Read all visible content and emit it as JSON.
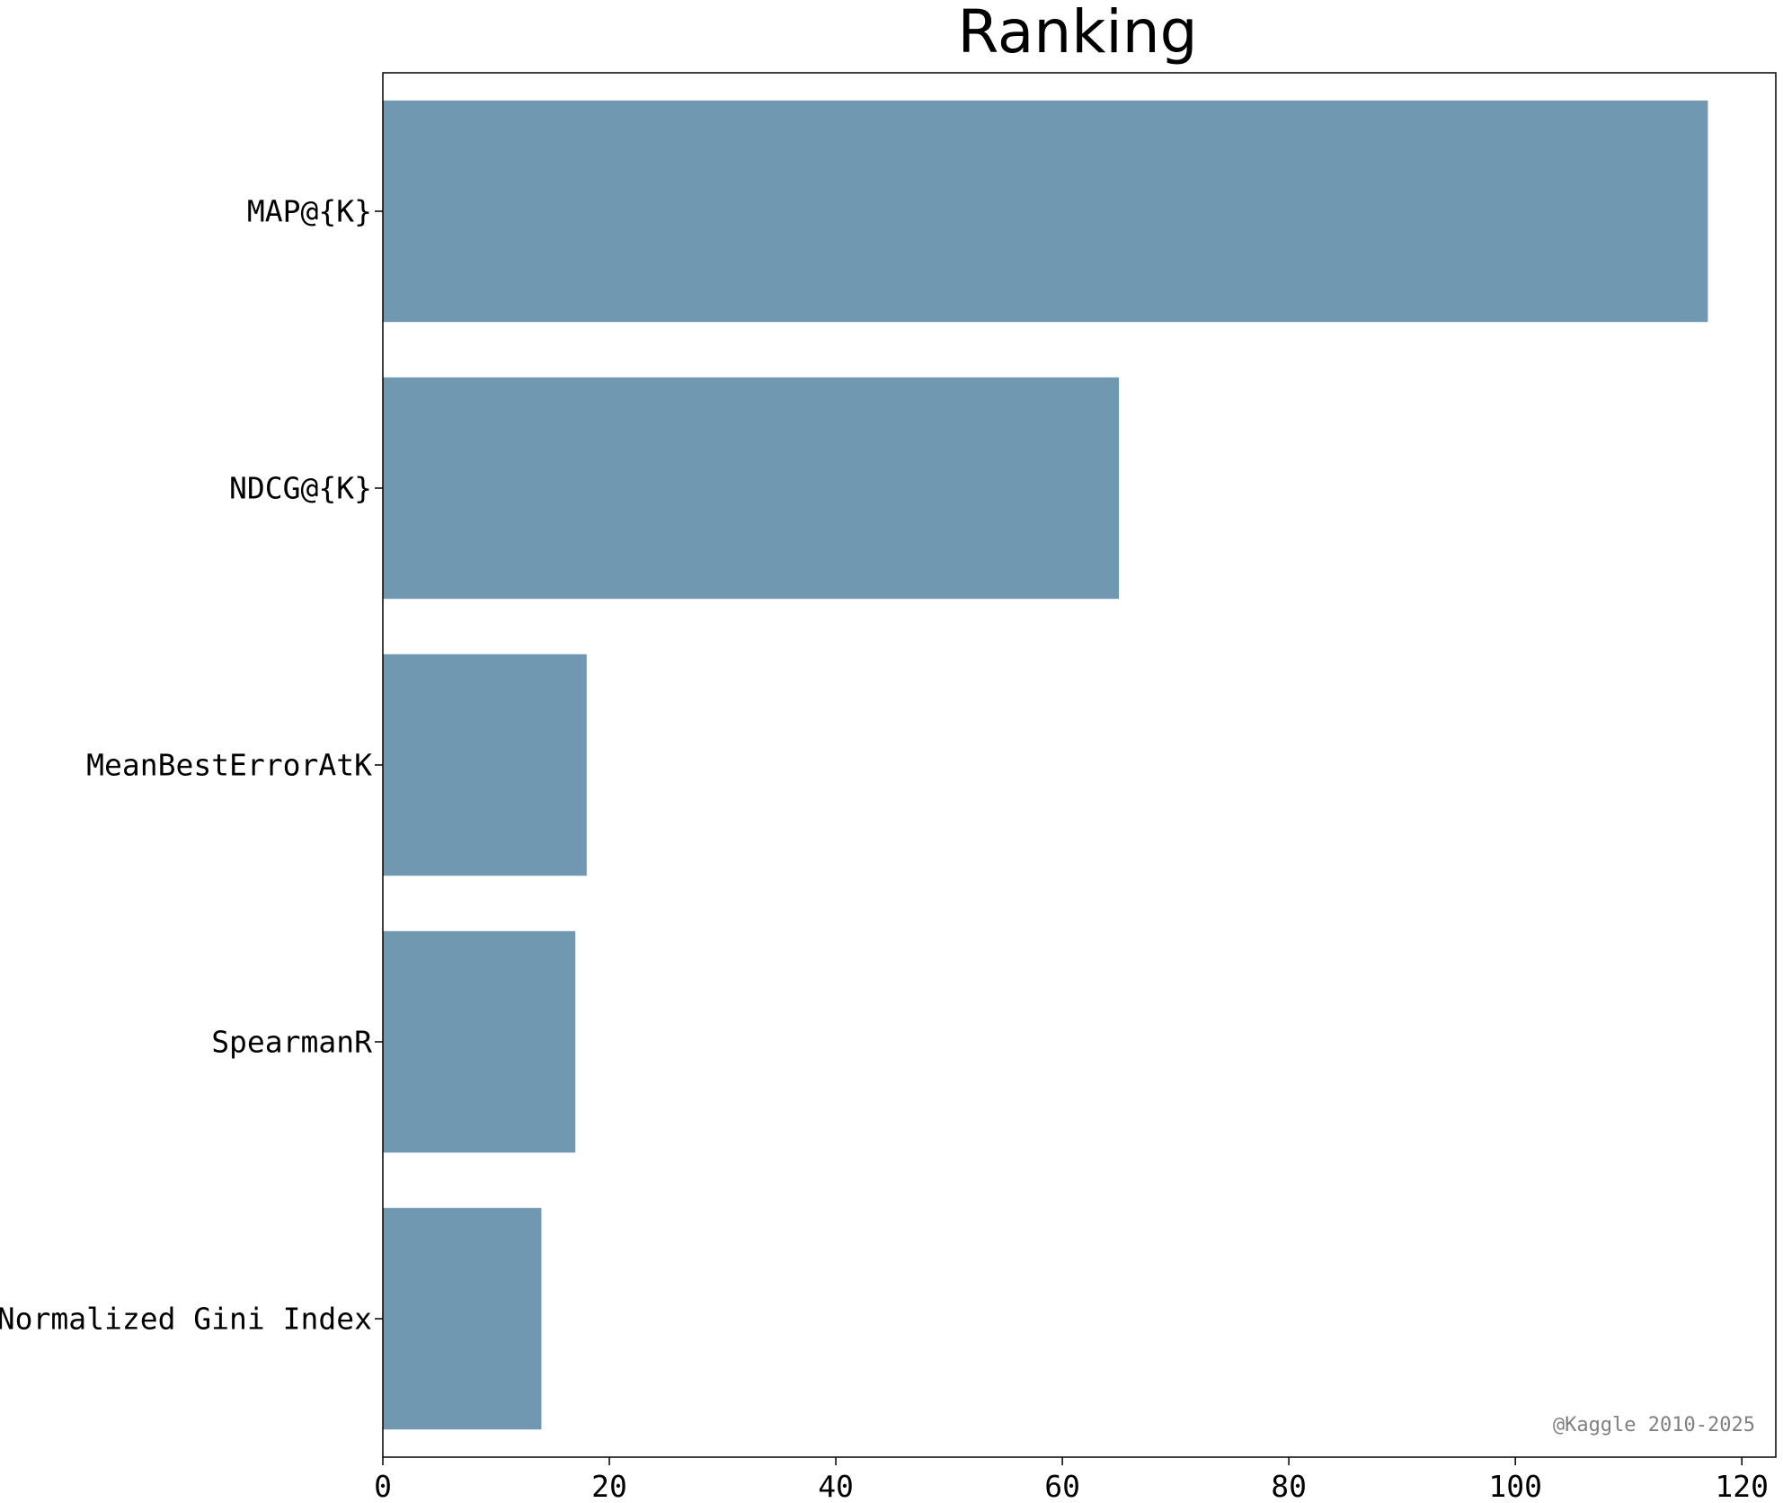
{
  "chart_data": {
    "type": "bar",
    "orientation": "horizontal",
    "title": "Ranking",
    "xlabel": "",
    "ylabel": "",
    "categories": [
      "MAP@{K}",
      "NDCG@{K}",
      "MeanBestErrorAtK",
      "SpearmanR",
      "Normalized Gini Index"
    ],
    "values": [
      117,
      65,
      18,
      17,
      14
    ],
    "xlim": [
      0,
      123
    ],
    "xticks": [
      0,
      20,
      40,
      60,
      80,
      100,
      120
    ],
    "grid": false,
    "bar_color": "#7098b1",
    "annotation": "@Kaggle 2010-2025"
  }
}
